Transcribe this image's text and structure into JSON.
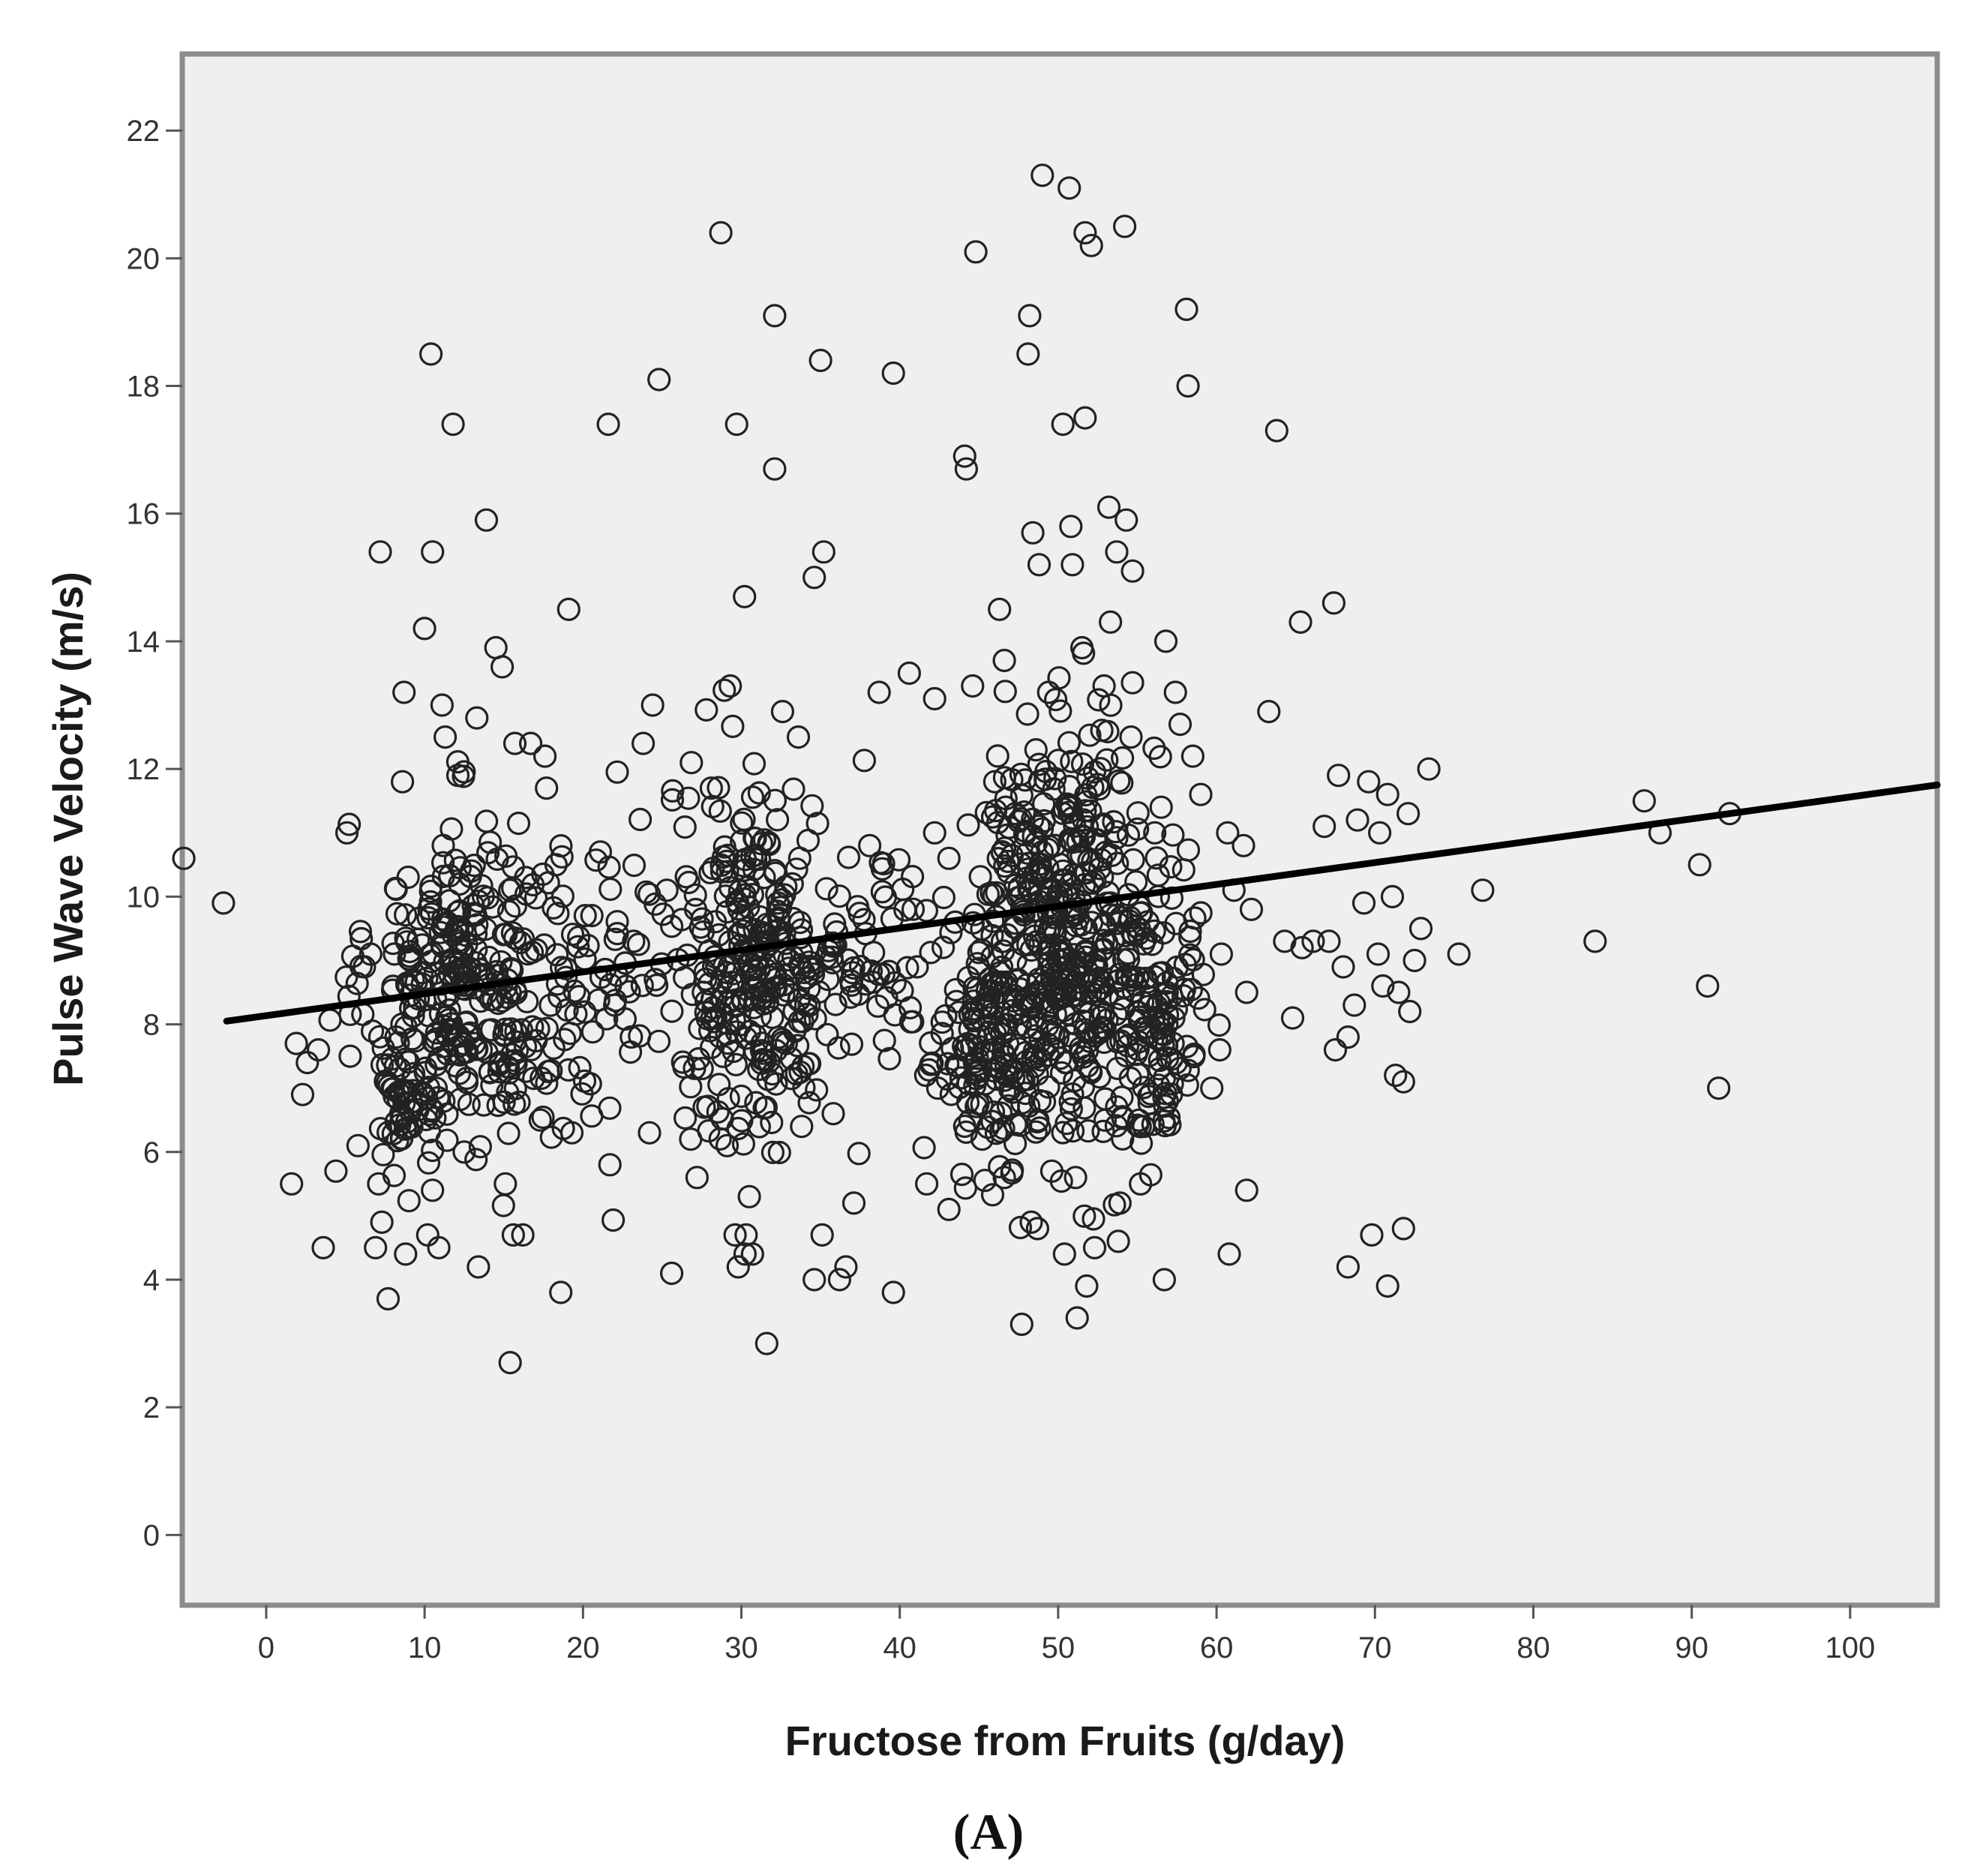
{
  "chart_data": {
    "type": "scatter",
    "title": "",
    "xlabel": "Fructose from Fruits (g/day)",
    "ylabel": "Pulse Wave Velocity (m/s)",
    "panel_label": "(A)",
    "xlim": [
      -5.3,
      105.5
    ],
    "ylim": [
      -1.1,
      23.2
    ],
    "x_ticks": [
      0,
      10,
      20,
      30,
      40,
      50,
      60,
      70,
      80,
      90,
      100
    ],
    "y_ticks": [
      0,
      2,
      4,
      6,
      8,
      10,
      12,
      14,
      16,
      18,
      20,
      22
    ],
    "grid": false,
    "legend": "none",
    "plot_background": "#efefef",
    "frame_color": "#8c8c8c",
    "marker": "open-circle",
    "marker_color": "#222222",
    "fit_line": {
      "type": "linear",
      "x": [
        -2.5,
        105.5
      ],
      "y": [
        8.05,
        11.75
      ],
      "color": "#000000"
    },
    "series": [
      {
        "points": [
          [
            -5.2,
            10.6
          ],
          [
            -2.7,
            9.9
          ],
          [
            1.6,
            5.5
          ],
          [
            1.9,
            7.7
          ],
          [
            2.3,
            6.9
          ],
          [
            2.6,
            7.4
          ],
          [
            3.3,
            7.6
          ],
          [
            3.6,
            4.5
          ],
          [
            4.4,
            5.7
          ],
          [
            5.1,
            11.0
          ],
          [
            5.3,
            7.5
          ],
          [
            5.8,
            6.1
          ],
          [
            6.2,
            8.9
          ],
          [
            6.6,
            9.1
          ],
          [
            6.9,
            4.5
          ],
          [
            7.1,
            5.5
          ],
          [
            7.2,
            15.4
          ],
          [
            7.3,
            4.9
          ],
          [
            7.7,
            3.7
          ],
          [
            8.2,
            7.8
          ],
          [
            8.5,
            6.6
          ],
          [
            8.6,
            11.8
          ],
          [
            8.7,
            13.2
          ],
          [
            8.8,
            4.4
          ],
          [
            9.6,
            8.4
          ],
          [
            10.0,
            14.2
          ],
          [
            10.2,
            4.7
          ],
          [
            10.4,
            18.5
          ],
          [
            10.5,
            15.4
          ],
          [
            10.5,
            5.4
          ],
          [
            10.9,
            4.5
          ],
          [
            11.1,
            13.0
          ],
          [
            11.3,
            12.5
          ],
          [
            11.8,
            17.4
          ],
          [
            12.1,
            11.9
          ],
          [
            12.5,
            6.0
          ],
          [
            13.3,
            12.8
          ],
          [
            13.4,
            4.2
          ],
          [
            13.9,
            15.9
          ],
          [
            14.5,
            13.9
          ],
          [
            14.9,
            13.6
          ],
          [
            15.1,
            5.5
          ],
          [
            15.4,
            2.7
          ],
          [
            15.6,
            4.7
          ],
          [
            15.7,
            12.4
          ],
          [
            16.2,
            4.7
          ],
          [
            16.7,
            12.4
          ],
          [
            17.3,
            6.5
          ],
          [
            17.6,
            12.2
          ],
          [
            17.7,
            11.7
          ],
          [
            18.3,
            10.5
          ],
          [
            18.6,
            3.8
          ],
          [
            19.1,
            14.5
          ],
          [
            19.3,
            6.3
          ],
          [
            21.1,
            10.7
          ],
          [
            21.6,
            17.4
          ],
          [
            21.7,
            5.8
          ],
          [
            22.0,
            8.3
          ],
          [
            23.2,
            9.3
          ],
          [
            23.8,
            12.4
          ],
          [
            24.2,
            6.3
          ],
          [
            24.4,
            13.0
          ],
          [
            24.8,
            18.1
          ],
          [
            25.3,
            10.1
          ],
          [
            25.6,
            4.1
          ],
          [
            26.8,
            6.2
          ],
          [
            27.2,
            5.6
          ],
          [
            27.6,
            8.5
          ],
          [
            28.1,
            11.7
          ],
          [
            28.7,
            20.4
          ],
          [
            29.1,
            6.1
          ],
          [
            29.3,
            13.3
          ],
          [
            29.6,
            4.7
          ],
          [
            29.7,
            17.4
          ],
          [
            29.8,
            4.2
          ],
          [
            30.2,
            14.7
          ],
          [
            30.3,
            4.7
          ],
          [
            30.5,
            5.3
          ],
          [
            30.7,
            4.4
          ],
          [
            31.6,
            3.0
          ],
          [
            32.1,
            16.7
          ],
          [
            32.1,
            19.1
          ],
          [
            32.6,
            12.9
          ],
          [
            33.6,
            12.5
          ],
          [
            33.8,
            6.4
          ],
          [
            34.6,
            15.0
          ],
          [
            34.6,
            4.0
          ],
          [
            35.0,
            18.4
          ],
          [
            35.1,
            4.7
          ],
          [
            35.2,
            15.4
          ],
          [
            35.8,
            6.6
          ],
          [
            36.2,
            4.0
          ],
          [
            36.6,
            4.2
          ],
          [
            37.1,
            5.2
          ],
          [
            38.1,
            10.8
          ],
          [
            38.7,
            13.2
          ],
          [
            39.6,
            18.2
          ],
          [
            39.6,
            3.8
          ],
          [
            40.6,
            13.5
          ],
          [
            41.1,
            8.9
          ],
          [
            41.7,
            5.5
          ],
          [
            42.2,
            13.1
          ],
          [
            42.2,
            11.0
          ],
          [
            42.4,
            7.0
          ],
          [
            43.1,
            10.6
          ],
          [
            43.1,
            5.1
          ],
          [
            43.5,
            9.6
          ],
          [
            44.1,
            16.9
          ],
          [
            44.2,
            16.7
          ],
          [
            44.6,
            13.3
          ],
          [
            44.8,
            20.1
          ],
          [
            45.2,
            6.2
          ],
          [
            46.0,
            11.8
          ],
          [
            46.3,
            14.5
          ],
          [
            46.6,
            5.6
          ],
          [
            46.6,
            13.7
          ],
          [
            47.3,
            11.3
          ],
          [
            47.7,
            3.3
          ],
          [
            48.1,
            18.5
          ],
          [
            48.2,
            19.1
          ],
          [
            48.3,
            4.9
          ],
          [
            48.4,
            15.7
          ],
          [
            48.6,
            12.3
          ],
          [
            48.7,
            4.8
          ],
          [
            48.8,
            15.2
          ],
          [
            49.0,
            21.3
          ],
          [
            49.4,
            13.2
          ],
          [
            49.6,
            5.7
          ],
          [
            49.7,
            9.5
          ],
          [
            50.0,
            8.8
          ],
          [
            50.3,
            17.4
          ],
          [
            50.4,
            4.4
          ],
          [
            50.7,
            21.1
          ],
          [
            50.8,
            15.8
          ],
          [
            50.9,
            15.2
          ],
          [
            51.1,
            5.6
          ],
          [
            51.2,
            3.4
          ],
          [
            51.5,
            13.9
          ],
          [
            51.7,
            17.5
          ],
          [
            51.7,
            20.4
          ],
          [
            51.8,
            3.9
          ],
          [
            52.1,
            20.2
          ],
          [
            52.3,
            4.5
          ],
          [
            52.9,
            13.3
          ],
          [
            53.2,
            16.1
          ],
          [
            53.3,
            14.3
          ],
          [
            53.7,
            15.4
          ],
          [
            53.8,
            4.6
          ],
          [
            53.9,
            5.2
          ],
          [
            54.2,
            20.5
          ],
          [
            54.3,
            15.9
          ],
          [
            54.6,
            12.5
          ],
          [
            54.7,
            15.1
          ],
          [
            55.2,
            5.5
          ],
          [
            55.4,
            6.4
          ],
          [
            56.1,
            11.0
          ],
          [
            56.5,
            11.4
          ],
          [
            56.7,
            4.0
          ],
          [
            56.8,
            14.0
          ],
          [
            57.3,
            8.1
          ],
          [
            57.4,
            13.2
          ],
          [
            57.7,
            12.7
          ],
          [
            58.1,
            19.2
          ],
          [
            58.2,
            18.0
          ],
          [
            58.5,
            12.2
          ],
          [
            59.0,
            11.6
          ],
          [
            59.7,
            7.0
          ],
          [
            60.2,
            7.6
          ],
          [
            60.3,
            9.1
          ],
          [
            60.7,
            11.0
          ],
          [
            60.8,
            4.4
          ],
          [
            61.1,
            10.1
          ],
          [
            61.7,
            10.8
          ],
          [
            61.9,
            8.5
          ],
          [
            61.9,
            5.4
          ],
          [
            62.2,
            9.8
          ],
          [
            63.3,
            12.9
          ],
          [
            63.8,
            17.3
          ],
          [
            64.3,
            9.3
          ],
          [
            64.8,
            8.1
          ],
          [
            65.3,
            14.3
          ],
          [
            65.4,
            9.2
          ],
          [
            66.1,
            9.3
          ],
          [
            66.8,
            11.1
          ],
          [
            67.1,
            9.3
          ],
          [
            67.4,
            14.6
          ],
          [
            67.5,
            7.6
          ],
          [
            67.7,
            11.9
          ],
          [
            68.0,
            8.9
          ],
          [
            68.3,
            4.2
          ],
          [
            68.3,
            7.8
          ],
          [
            68.7,
            8.3
          ],
          [
            68.9,
            11.2
          ],
          [
            69.3,
            9.9
          ],
          [
            69.6,
            11.8
          ],
          [
            69.8,
            4.7
          ],
          [
            70.2,
            9.1
          ],
          [
            70.3,
            11.0
          ],
          [
            70.5,
            8.6
          ],
          [
            70.8,
            11.6
          ],
          [
            70.8,
            3.9
          ],
          [
            71.1,
            10.0
          ],
          [
            71.3,
            7.2
          ],
          [
            71.5,
            8.5
          ],
          [
            71.8,
            4.8
          ],
          [
            71.8,
            7.1
          ],
          [
            72.1,
            11.3
          ],
          [
            72.2,
            8.2
          ],
          [
            72.5,
            9.0
          ],
          [
            72.9,
            9.5
          ],
          [
            73.4,
            12.0
          ],
          [
            75.3,
            9.1
          ],
          [
            76.8,
            10.1
          ],
          [
            83.9,
            9.3
          ],
          [
            87.0,
            11.5
          ],
          [
            88.0,
            11.0
          ],
          [
            90.5,
            10.5
          ],
          [
            91.0,
            8.6
          ],
          [
            91.7,
            7.0
          ],
          [
            92.4,
            11.3
          ]
        ],
        "clusters": [
          {
            "cx": 12.5,
            "cy": 8.6,
            "sx": 3.0,
            "sy": 1.3,
            "n": 300
          },
          {
            "cx": 30.8,
            "cy": 9.0,
            "sx": 2.8,
            "sy": 1.4,
            "n": 300
          },
          {
            "cx": 50.5,
            "cy": 9.3,
            "sx": 3.0,
            "sy": 1.6,
            "n": 480
          },
          {
            "cx": 45.5,
            "cy": 7.6,
            "sx": 1.6,
            "sy": 0.9,
            "n": 110
          },
          {
            "cx": 56.5,
            "cy": 8.0,
            "sx": 1.4,
            "sy": 1.0,
            "n": 90
          },
          {
            "cx": 38.5,
            "cy": 9.0,
            "sx": 2.2,
            "sy": 1.0,
            "n": 60
          },
          {
            "cx": 20.5,
            "cy": 8.3,
            "sx": 2.5,
            "sy": 1.1,
            "n": 60
          },
          {
            "cx": 8.5,
            "cy": 6.8,
            "sx": 0.8,
            "sy": 0.4,
            "n": 40
          }
        ]
      }
    ]
  }
}
